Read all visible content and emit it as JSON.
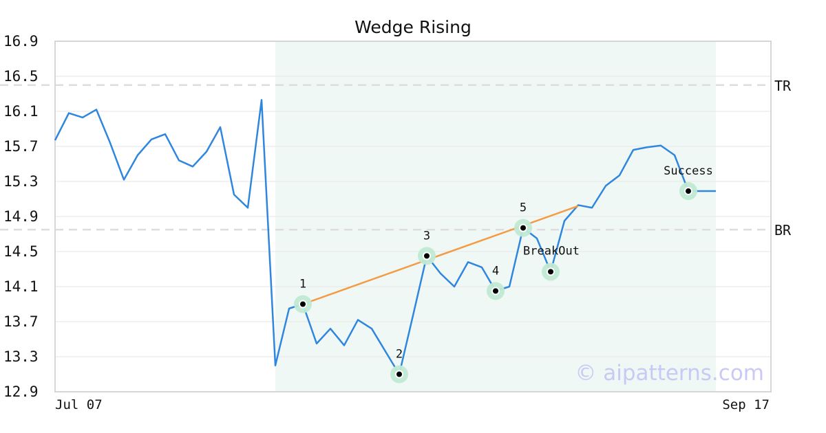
{
  "chart_data": {
    "type": "line",
    "title": "Wedge Rising",
    "xlabel": "",
    "ylabel": "",
    "x_tick_labels": [
      "Jul 07",
      "Sep 17"
    ],
    "y_ticks": [
      "12.9",
      "13.3",
      "13.7",
      "14.1",
      "14.5",
      "14.9",
      "15.3",
      "15.7",
      "16.1",
      "16.5",
      "16.9"
    ],
    "ylim": [
      12.9,
      16.9
    ],
    "grid": "horizontal",
    "series": [
      {
        "color": "#2e86de",
        "values": [
          15.77,
          16.08,
          16.03,
          16.12,
          15.74,
          15.32,
          15.6,
          15.78,
          15.84,
          15.54,
          15.47,
          15.64,
          15.92,
          15.15,
          15.0,
          16.23,
          13.2,
          13.85,
          13.9,
          13.45,
          13.62,
          13.43,
          13.72,
          13.62,
          13.36,
          13.1,
          13.77,
          14.45,
          14.25,
          14.1,
          14.38,
          14.32,
          14.05,
          14.1,
          14.77,
          14.65,
          14.27,
          14.85,
          15.03,
          15.0,
          15.25,
          15.37,
          15.66,
          15.69,
          15.71,
          15.6,
          15.19,
          15.19,
          15.19
        ]
      }
    ],
    "highlight_range": [
      16,
      48
    ],
    "reference_lines": [
      {
        "label": "TR",
        "value": 16.4
      },
      {
        "label": "BR",
        "value": 14.75
      }
    ],
    "trend_line": {
      "from": [
        18,
        13.9
      ],
      "to": [
        38,
        15.02
      ],
      "color": "#f39c45"
    },
    "pattern_points": [
      {
        "index": 18,
        "value": 13.9,
        "label": "1",
        "label_pos": "above"
      },
      {
        "index": 25,
        "value": 13.1,
        "label": "2",
        "label_pos": "above"
      },
      {
        "index": 27,
        "value": 14.45,
        "label": "3",
        "label_pos": "above"
      },
      {
        "index": 32,
        "value": 14.05,
        "label": "4",
        "label_pos": "above"
      },
      {
        "index": 34,
        "value": 14.77,
        "label": "5",
        "label_pos": "above"
      },
      {
        "index": 36,
        "value": 14.27,
        "label": "BreakOut",
        "label_pos": "above-left"
      },
      {
        "index": 46,
        "value": 15.19,
        "label": "Success",
        "label_pos": "above"
      }
    ],
    "watermark": "© aipatterns.com"
  }
}
